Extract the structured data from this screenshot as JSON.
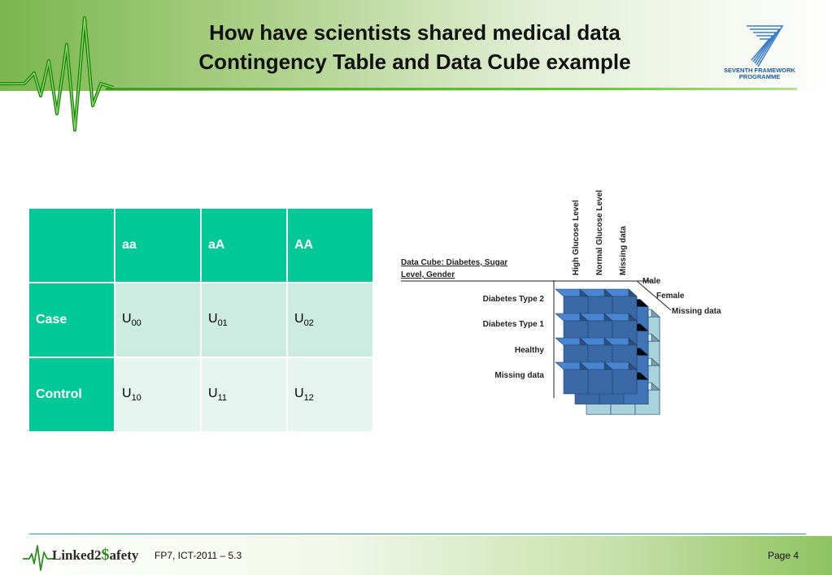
{
  "slide": {
    "title_line1": "How have scientists shared medical data",
    "title_line2": "Contingency Table and Data Cube example"
  },
  "logo": {
    "fp7_line1": "SEVENTH FRAMEWORK",
    "fp7_line2": "PROGRAMME",
    "brand_color": "#1f5a9e"
  },
  "table": {
    "columns": [
      "",
      "aa",
      "aA",
      "AA"
    ],
    "rows": [
      {
        "label": "Case",
        "cells": [
          {
            "base": "U",
            "sub": "00"
          },
          {
            "base": "U",
            "sub": "01"
          },
          {
            "base": "U",
            "sub": "02"
          }
        ]
      },
      {
        "label": "Control",
        "cells": [
          {
            "base": "U",
            "sub": "10"
          },
          {
            "base": "U",
            "sub": "11"
          },
          {
            "base": "U",
            "sub": "12"
          }
        ]
      }
    ],
    "header_color": "#00c896"
  },
  "cube": {
    "caption_line1": "Data Cube: Diabetes, Sugar",
    "caption_line2": "Level, Gender",
    "top_labels": [
      "High Glucose Level",
      "Normal Glucose Level",
      "Missing data"
    ],
    "side_labels": [
      "Male",
      "Female",
      "Missing data"
    ],
    "row_labels": [
      "Diabetes Type 2",
      "Diabetes Type 1",
      "Healthy",
      "Missing data"
    ],
    "cube_color": "#3a6aa6",
    "missing_color": "#a9d3db"
  },
  "footer": {
    "brand": "Linked2Safety",
    "brand_part1": "Linked2",
    "brand_part2": "afety",
    "text": "FP7, ICT-2011 – 5.3",
    "page": "Page 4"
  }
}
